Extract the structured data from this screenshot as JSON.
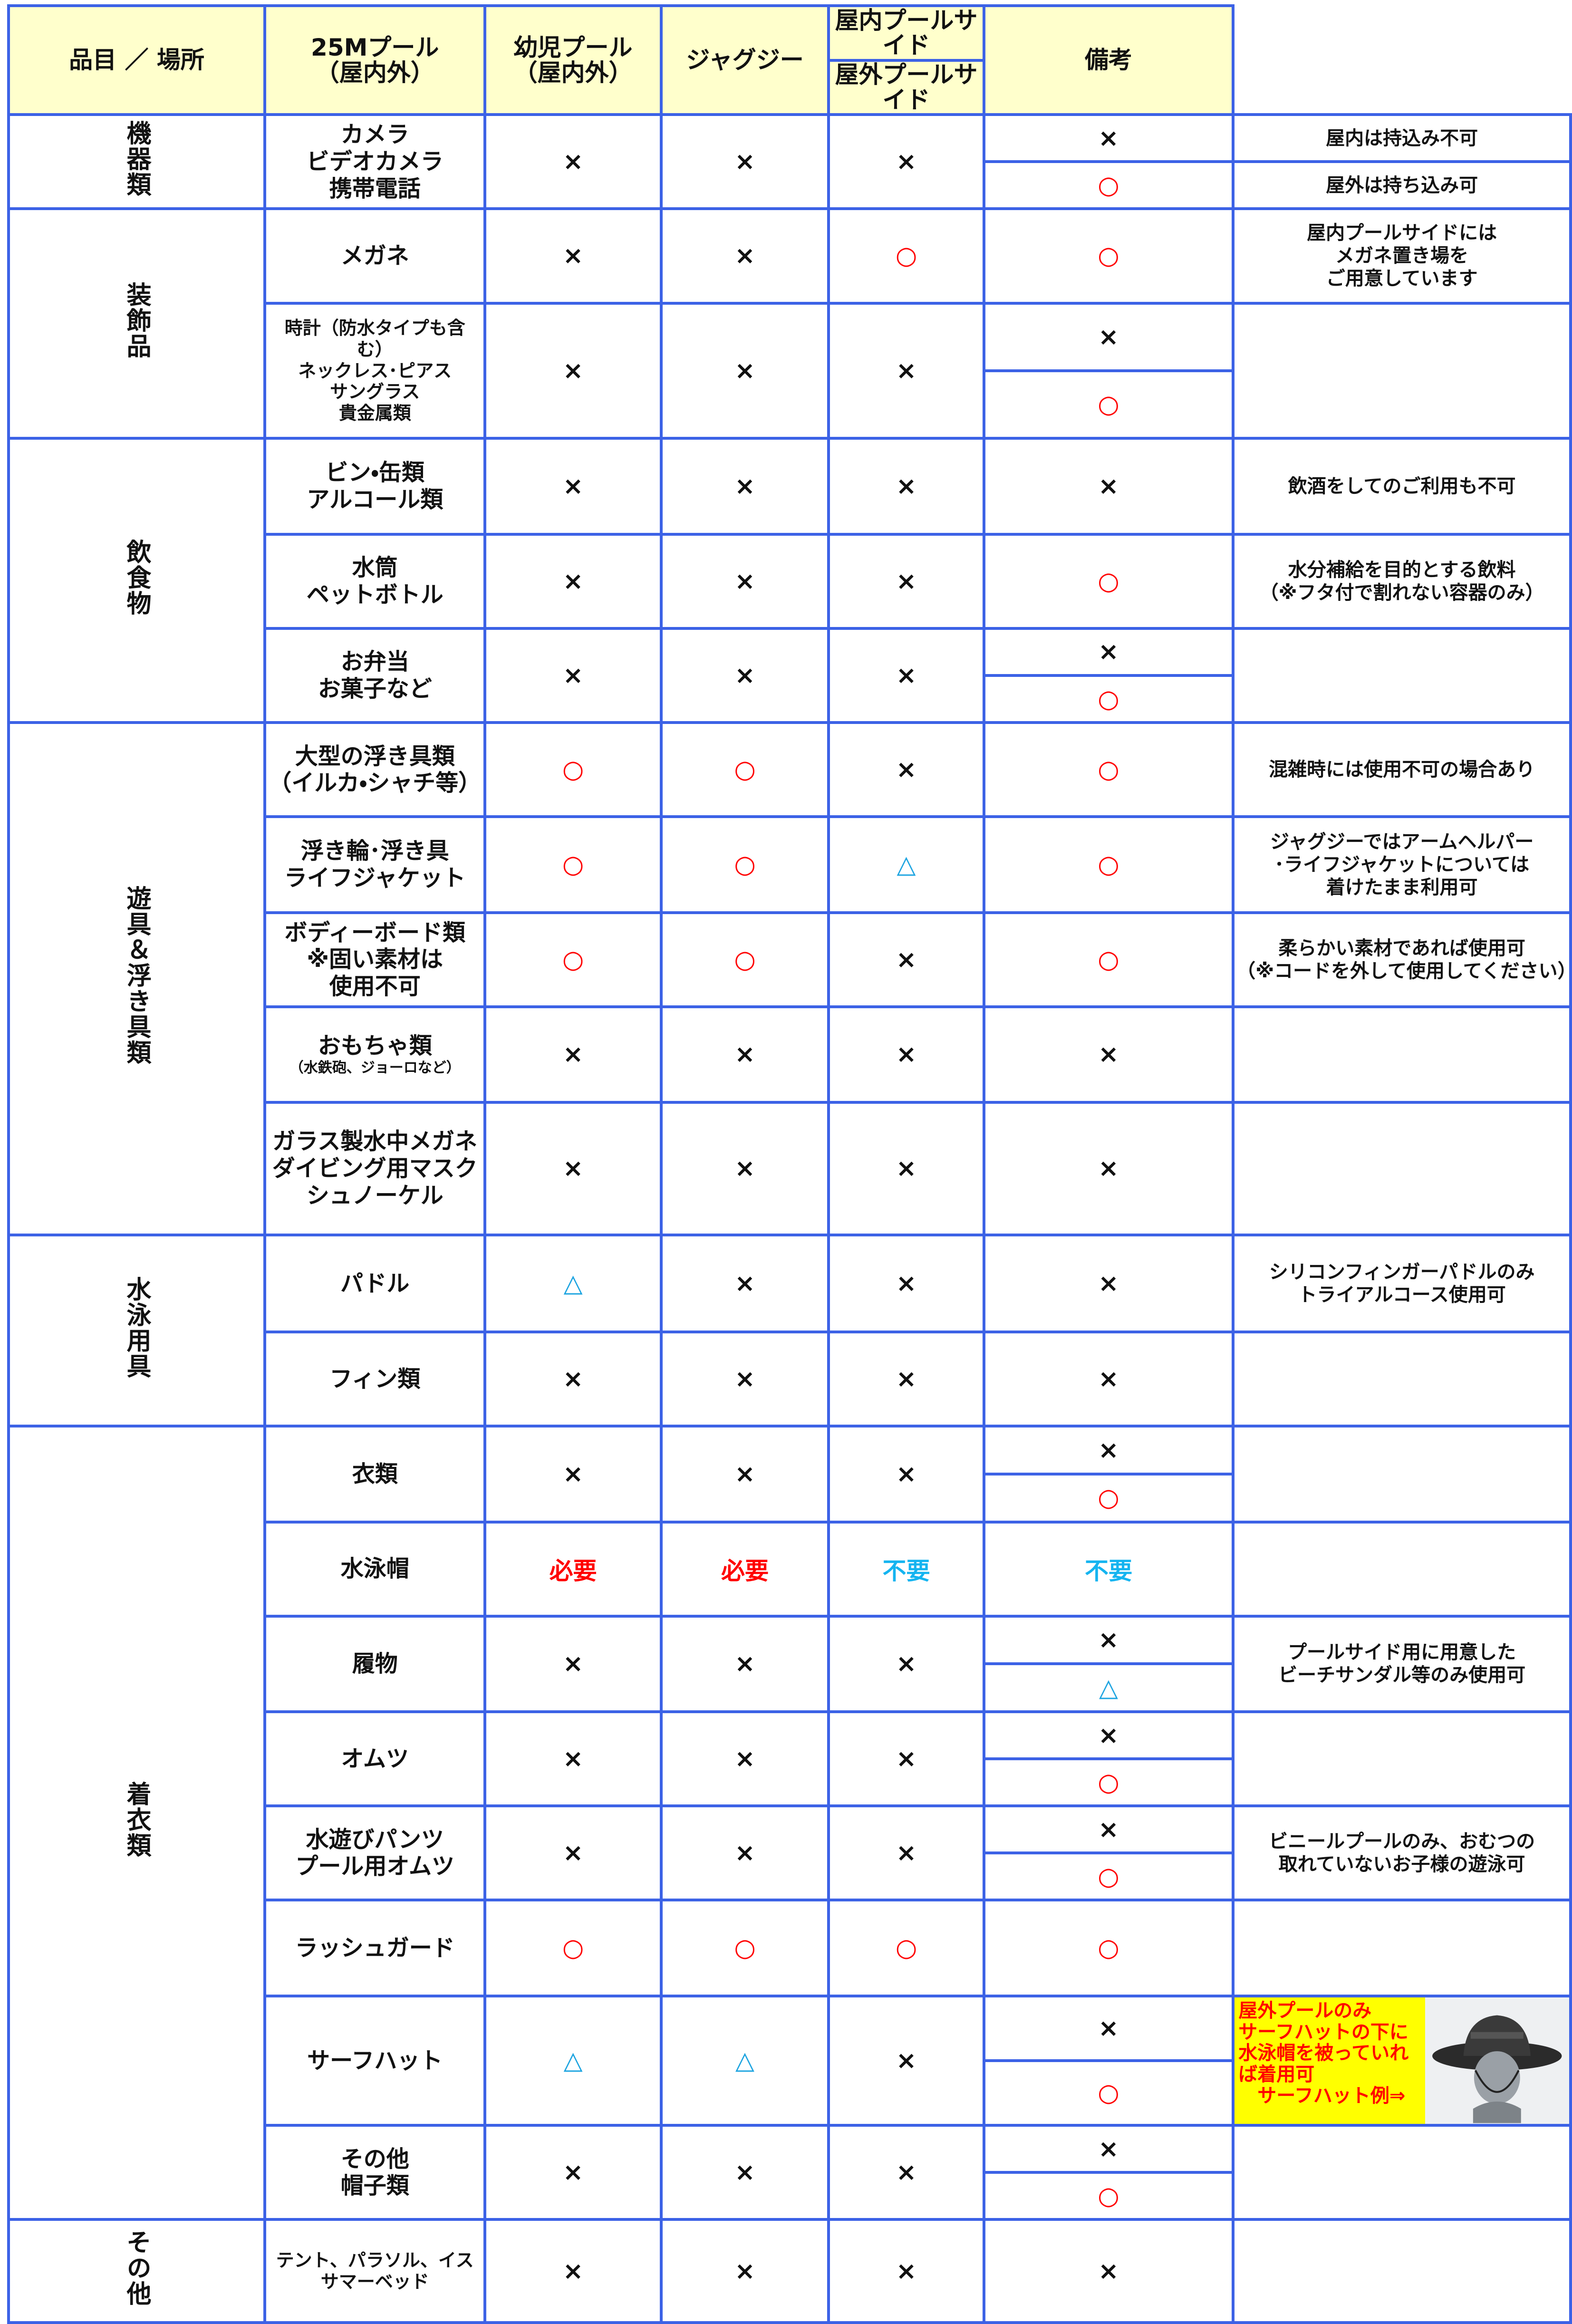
{
  "table": {
    "columns": [
      "品目 ／ 場所",
      "25Mプール\n（屋内外）",
      "幼児プール\n（屋内外）",
      "ジャグジー",
      "屋内プールサイド",
      "屋外プールサイド",
      "備考"
    ],
    "symbol_colors": {
      "×": "#111111",
      "○": "#ff0000",
      "△": "#1aa3e0",
      "必要": "#ff0000",
      "不要": "#14b4f0"
    },
    "border_color": "#3c62e6",
    "header_background": "#ffffcc",
    "groups": [
      {
        "category": "機器類",
        "items": [
          {
            "name": "カメラ\nビデオカメラ\n携帯電話",
            "cells": [
              "×",
              "×",
              "×"
            ],
            "side": [
              "×",
              "○"
            ],
            "note": [
              "屋内は持込み不可",
              "屋外は持ち込み可"
            ]
          }
        ]
      },
      {
        "category": "装飾品",
        "items": [
          {
            "name": "メガネ",
            "cells": [
              "×",
              "×",
              "○"
            ],
            "side": "○",
            "note": "屋内プールサイドには\nメガネ置き場を\nご用意しています"
          },
          {
            "name": "時計（防水タイプも含む）\nネックレス･ピアス\nサングラス\n貴金属類",
            "cells": [
              "×",
              "×",
              "×"
            ],
            "side": [
              "×",
              "○"
            ]
          }
        ]
      },
      {
        "category": "飲食物",
        "items": [
          {
            "name": "ビン・缶類\nアルコール類",
            "cells": [
              "×",
              "×",
              "×"
            ],
            "side": "×",
            "note": "飲酒をしてのご利用も不可"
          },
          {
            "name": "水筒\nペットボトル",
            "cells": [
              "×",
              "×",
              "×"
            ],
            "side": "○",
            "note": "水分補給を目的とする飲料\n（※フタ付で割れない容器のみ）"
          },
          {
            "name": "お弁当\nお菓子など",
            "cells": [
              "×",
              "×",
              "×"
            ],
            "side": [
              "×",
              "○"
            ]
          }
        ]
      },
      {
        "category": "遊具＆浮き具類",
        "items": [
          {
            "name": "大型の浮き具類\n（イルカ・シャチ等）",
            "cells": [
              "○",
              "○",
              "×"
            ],
            "side": "○",
            "note": "混雑時には使用不可の場合あり"
          },
          {
            "name": "浮き輪･浮き具\nライフジャケット",
            "cells": [
              "○",
              "○",
              "△"
            ],
            "side": "○",
            "note": "ジャグジーではアームヘルパー\n･ライフジャケットについては\n着けたまま利用可"
          },
          {
            "name": "ボディーボード類\n※固い素材は\n使用不可",
            "cells": [
              "○",
              "○",
              "×"
            ],
            "side": "○",
            "note": "柔らかい素材であれば使用可\n（※コードを外して使用してください）"
          },
          {
            "name": "おもちゃ類",
            "name_note": "（水鉄砲、ジョーロなど）",
            "cells": [
              "×",
              "×",
              "×"
            ],
            "side": "×"
          },
          {
            "name": "ガラス製水中メガネ\nダイビング用マスク\nシュノーケル",
            "cells": [
              "×",
              "×",
              "×"
            ],
            "side": "×"
          }
        ]
      },
      {
        "category": "水泳用具",
        "items": [
          {
            "name": "パドル",
            "cells": [
              "△",
              "×",
              "×"
            ],
            "side": "×",
            "note": "シリコンフィンガーパドルのみ\nトライアルコース使用可"
          },
          {
            "name": "フィン類",
            "cells": [
              "×",
              "×",
              "×"
            ],
            "side": "×"
          }
        ]
      },
      {
        "category": "着衣類",
        "items": [
          {
            "name": "衣類",
            "cells": [
              "×",
              "×",
              "×"
            ],
            "side": [
              "×",
              "○"
            ]
          },
          {
            "name": "水泳帽",
            "cells": [
              "必要",
              "必要",
              "不要"
            ],
            "side": "不要"
          },
          {
            "name": "履物",
            "cells": [
              "×",
              "×",
              "×"
            ],
            "side": [
              "×",
              "△"
            ],
            "note": "プールサイド用に用意した\nビーチサンダル等のみ使用可"
          },
          {
            "name": "オムツ",
            "cells": [
              "×",
              "×",
              "×"
            ],
            "side": [
              "×",
              "○"
            ]
          },
          {
            "name": "水遊びパンツ\nプール用オムツ",
            "cells": [
              "×",
              "×",
              "×"
            ],
            "side": [
              "×",
              "○"
            ],
            "note": "ビニールプールのみ、おむつの\n取れていないお子様の遊泳可"
          },
          {
            "name": "ラッシュガード",
            "cells": [
              "○",
              "○",
              "○"
            ],
            "side": "○"
          },
          {
            "name": "サーフハット",
            "cells": [
              "△",
              "△",
              "×"
            ],
            "side": [
              "×",
              "○"
            ],
            "note": "屋外プールのみ\nサーフハットの下に\n水泳帽を被っていれ\nば着用可\n　サーフハット例⇒",
            "note_highlight": "#ffff00",
            "note_color": "#ff0000"
          },
          {
            "name": "その他\n帽子類",
            "cells": [
              "×",
              "×",
              "×"
            ],
            "side": [
              "×",
              "○"
            ]
          }
        ]
      },
      {
        "category": "その他",
        "items": [
          {
            "name": "テント、パラソル、イス\nサマーベッド",
            "cells": [
              "×",
              "×",
              "×"
            ],
            "side": "×"
          }
        ]
      }
    ]
  }
}
